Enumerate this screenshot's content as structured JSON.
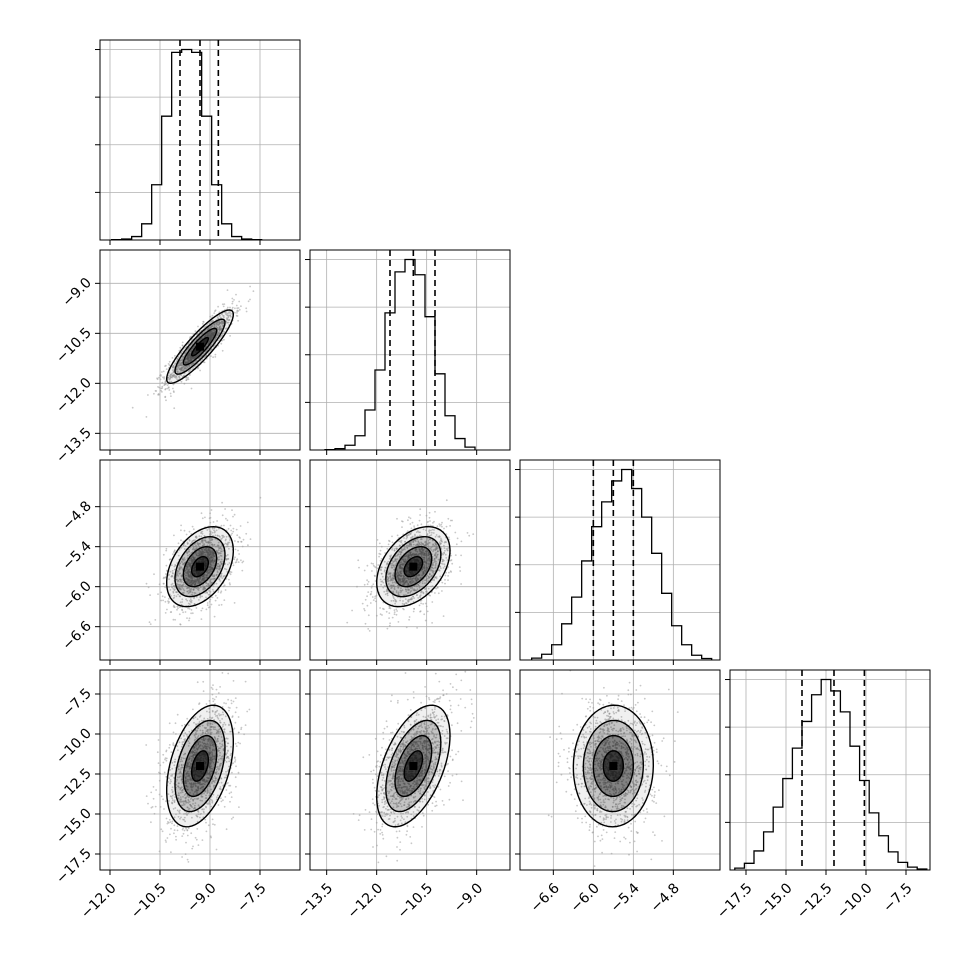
{
  "chart_data": {
    "type": "scatter",
    "title": "",
    "grid": true,
    "variables": [
      {
        "name": "",
        "range": [
          -12.3,
          -6.3
        ],
        "ticks": [
          -12.0,
          -10.5,
          -9.0,
          -7.5
        ],
        "tick_labels": [
          "−12.0",
          "−10.5",
          "−9.0",
          "−7.5"
        ],
        "quantiles": [
          -9.9,
          -9.3,
          -8.75
        ],
        "marginal_hist": {
          "bins": [
            -11.8,
            -11.5,
            -11.2,
            -10.9,
            -10.6,
            -10.3,
            -10.0,
            -9.7,
            -9.4,
            -9.1,
            -8.8,
            -8.5,
            -8.2,
            -7.9,
            -7.6
          ],
          "counts": [
            2,
            5,
            18,
            85,
            290,
            650,
            985,
            1000,
            985,
            650,
            290,
            85,
            18,
            5,
            2
          ]
        }
      },
      {
        "name": "",
        "range": [
          -14.0,
          -8.0
        ],
        "ticks": [
          -13.5,
          -12.0,
          -10.5,
          -9.0
        ],
        "tick_labels": [
          "−13.5",
          "−12.0",
          "−10.5",
          "−9.0"
        ],
        "quantiles": [
          -11.6,
          -10.9,
          -10.25
        ],
        "marginal_hist": {
          "bins": [
            -13.4,
            -13.1,
            -12.8,
            -12.5,
            -12.2,
            -11.9,
            -11.6,
            -11.3,
            -11.0,
            -10.7,
            -10.4,
            -10.1,
            -9.8,
            -9.5,
            -9.2
          ],
          "counts": [
            2,
            7,
            25,
            75,
            210,
            420,
            720,
            935,
            1000,
            920,
            700,
            400,
            180,
            60,
            15
          ]
        }
      },
      {
        "name": "",
        "range": [
          -7.1,
          -4.1
        ],
        "ticks": [
          -6.6,
          -6.0,
          -5.4,
          -4.8
        ],
        "tick_labels": [
          "−6.6",
          "−6.0",
          "−5.4",
          "−4.8"
        ],
        "quantiles": [
          -6.0,
          -5.7,
          -5.4
        ],
        "marginal_hist": {
          "bins": [
            -6.85,
            -6.7,
            -6.55,
            -6.4,
            -6.25,
            -6.1,
            -5.95,
            -5.8,
            -5.65,
            -5.5,
            -5.35,
            -5.2,
            -5.05,
            -4.9,
            -4.75,
            -4.6,
            -4.45,
            -4.3
          ],
          "counts": [
            10,
            30,
            80,
            190,
            330,
            520,
            700,
            830,
            940,
            1000,
            900,
            750,
            560,
            350,
            180,
            80,
            25,
            8
          ]
        }
      },
      {
        "name": "",
        "range": [
          -18.5,
          -6.0
        ],
        "ticks": [
          -17.5,
          -15.0,
          -12.5,
          -10.0,
          -7.5
        ],
        "tick_labels": [
          "−17.5",
          "−15.0",
          "−12.5",
          "−10.0",
          "−7.5"
        ],
        "quantiles": [
          -14.0,
          -12.0,
          -10.1
        ],
        "marginal_hist": {
          "bins": [
            -17.9,
            -17.3,
            -16.7,
            -16.1,
            -15.5,
            -14.9,
            -14.3,
            -13.7,
            -13.1,
            -12.5,
            -11.9,
            -11.3,
            -10.7,
            -10.1,
            -9.5,
            -8.9,
            -8.3,
            -7.7,
            -7.1,
            -6.5
          ],
          "counts": [
            10,
            35,
            100,
            200,
            330,
            480,
            640,
            780,
            920,
            1000,
            940,
            830,
            650,
            470,
            300,
            180,
            95,
            40,
            15,
            5
          ]
        }
      }
    ],
    "joint": [
      {
        "row": 1,
        "col": 0,
        "mean": [
          -9.3,
          -10.9
        ],
        "sd": [
          0.5,
          0.55
        ],
        "rho": 0.88
      },
      {
        "row": 2,
        "col": 0,
        "mean": [
          -9.3,
          -5.7
        ],
        "sd": [
          0.5,
          0.3
        ],
        "rho": 0.4
      },
      {
        "row": 2,
        "col": 1,
        "mean": [
          -10.9,
          -5.7
        ],
        "sd": [
          0.55,
          0.3
        ],
        "rho": 0.4
      },
      {
        "row": 3,
        "col": 0,
        "mean": [
          -9.3,
          -12.0
        ],
        "sd": [
          0.5,
          1.9
        ],
        "rho": 0.4
      },
      {
        "row": 3,
        "col": 1,
        "mean": [
          -10.9,
          -12.0
        ],
        "sd": [
          0.55,
          1.9
        ],
        "rho": 0.5
      },
      {
        "row": 3,
        "col": 2,
        "mean": [
          -5.7,
          -12.0
        ],
        "sd": [
          0.3,
          1.9
        ],
        "rho": 0.02
      }
    ],
    "contour_levels_sigma": [
      0.5,
      1.0,
      1.5,
      2.0
    ],
    "colors": {
      "line": "#000000",
      "grid": "#b0b0b0",
      "points": "#9a9a9a",
      "density": "#000000"
    }
  }
}
